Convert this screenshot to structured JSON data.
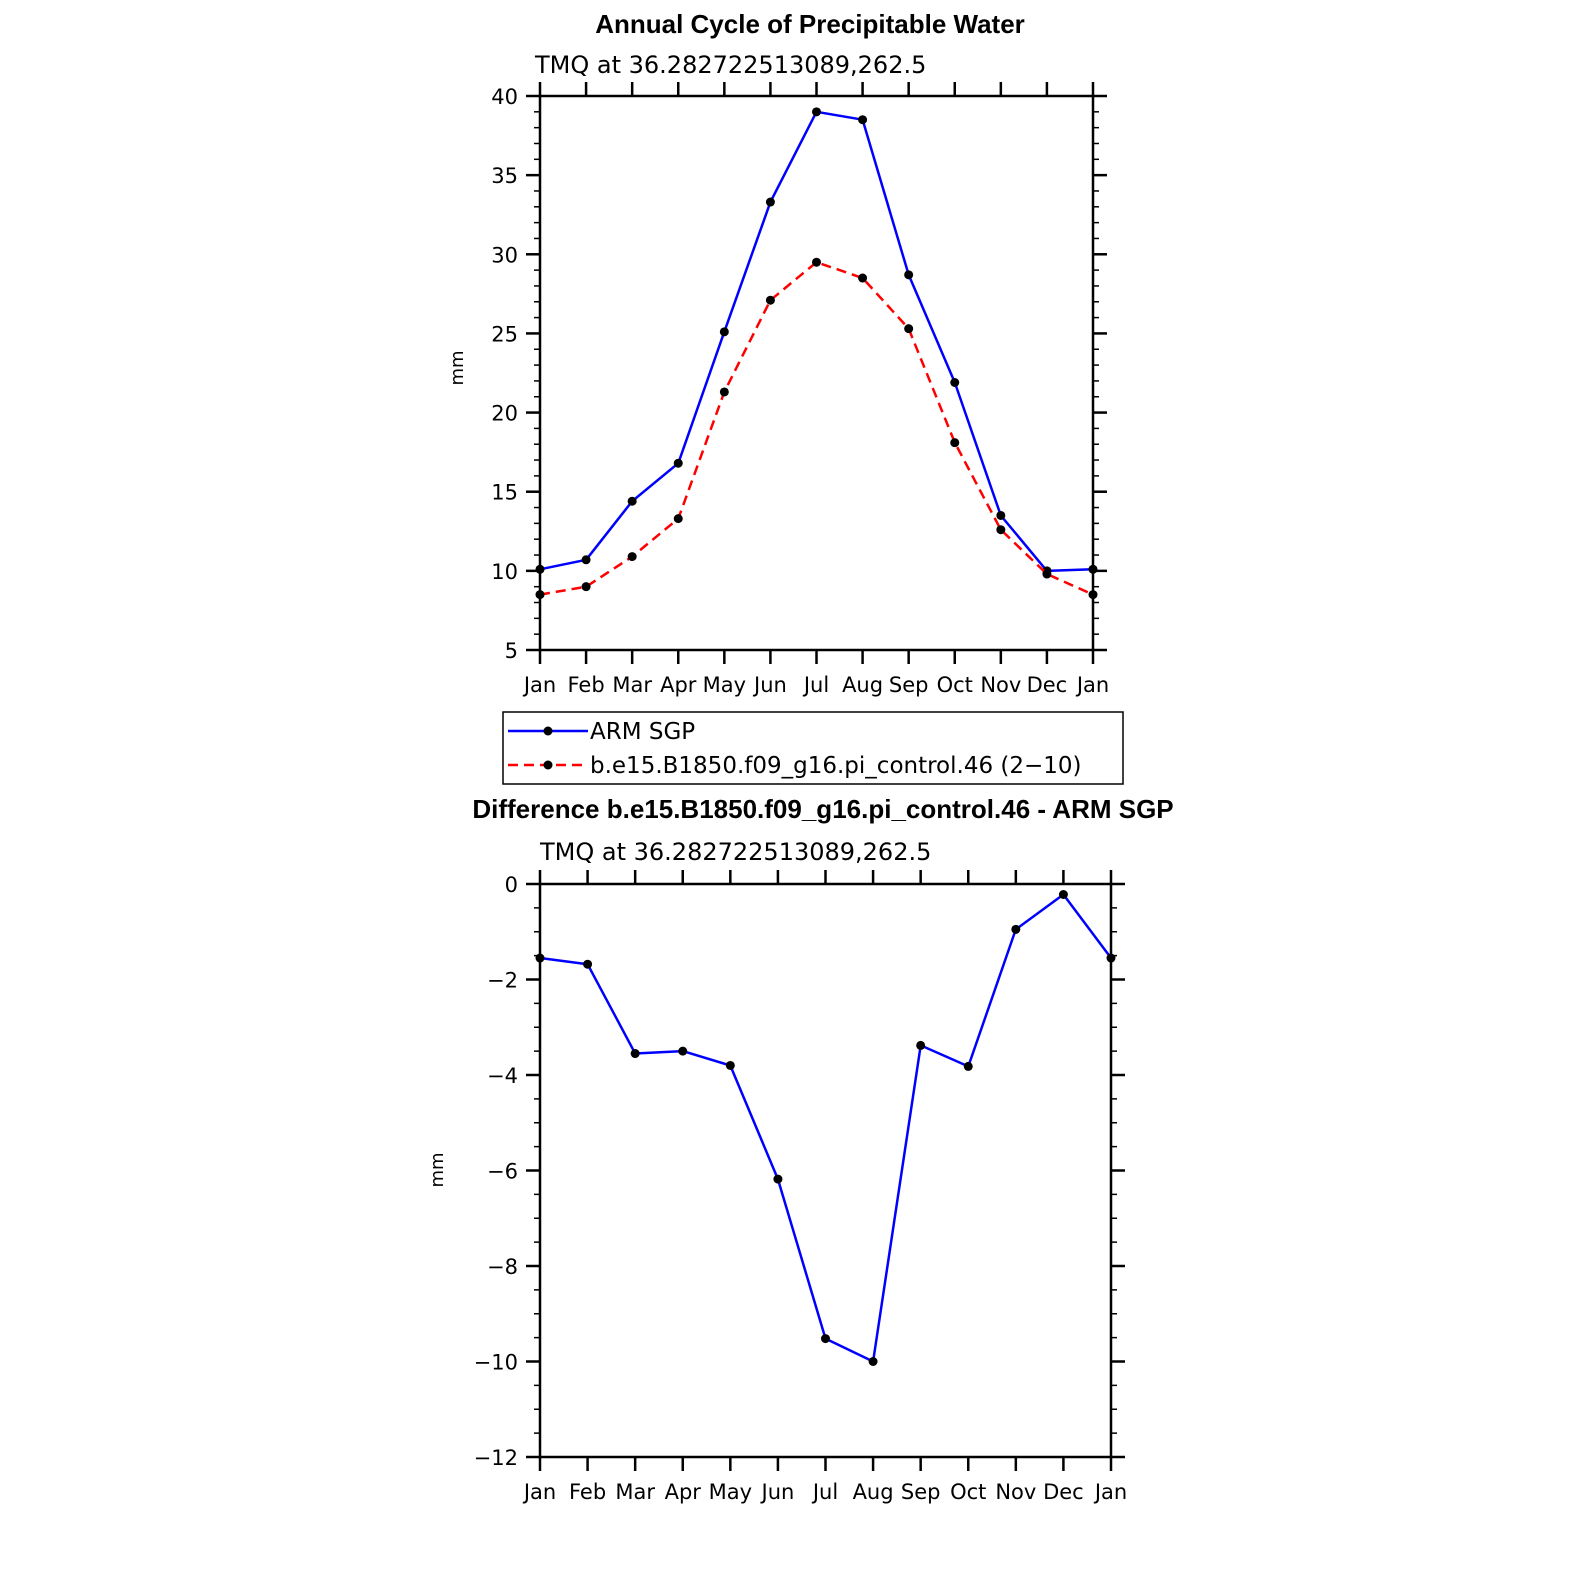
{
  "chart_data": [
    {
      "type": "line",
      "title": "Annual Cycle of Precipitable Water",
      "subtitle": "TMQ at 36.282722513089,262.5",
      "xlabel": "",
      "ylabel": "mm",
      "categories": [
        "Jan",
        "Feb",
        "Mar",
        "Apr",
        "May",
        "Jun",
        "Jul",
        "Aug",
        "Sep",
        "Oct",
        "Nov",
        "Dec",
        "Jan"
      ],
      "ylim": [
        5,
        40
      ],
      "yticks": [
        5,
        10,
        15,
        20,
        25,
        30,
        35,
        40
      ],
      "series": [
        {
          "name": "ARM SGP",
          "color": "#0000ff",
          "dash": "solid",
          "values": [
            10.1,
            10.7,
            14.4,
            16.8,
            25.1,
            33.3,
            39.0,
            38.5,
            28.7,
            21.9,
            13.5,
            10.0,
            10.1
          ]
        },
        {
          "name": "b.e15.B1850.f09_g16.pi_control.46 (2−10)",
          "color": "#ff0000",
          "dash": "dashed",
          "values": [
            8.5,
            9.0,
            10.9,
            13.3,
            21.3,
            27.1,
            29.5,
            28.5,
            25.3,
            18.1,
            12.6,
            9.8,
            8.5
          ]
        }
      ],
      "legend_position": "bottom"
    },
    {
      "type": "line",
      "title": "Difference b.e15.B1850.f09_g16.pi_control.46 - ARM SGP",
      "subtitle": "TMQ at 36.282722513089,262.5",
      "xlabel": "",
      "ylabel": "mm",
      "categories": [
        "Jan",
        "Feb",
        "Mar",
        "Apr",
        "May",
        "Jun",
        "Jul",
        "Aug",
        "Sep",
        "Oct",
        "Nov",
        "Dec",
        "Jan"
      ],
      "ylim": [
        -12,
        0
      ],
      "yticks": [
        0,
        -2,
        -4,
        -6,
        -8,
        -10,
        -12
      ],
      "ytick_labels": [
        "0",
        "−2",
        "−4",
        "−6",
        "−8",
        "−10",
        "−12"
      ],
      "series": [
        {
          "name": "Difference",
          "color": "#0000ff",
          "dash": "solid",
          "values": [
            -1.55,
            -1.68,
            -3.55,
            -3.5,
            -3.8,
            -6.18,
            -9.52,
            -10.0,
            -3.38,
            -3.82,
            -0.95,
            -0.22,
            -1.55
          ]
        }
      ]
    }
  ]
}
